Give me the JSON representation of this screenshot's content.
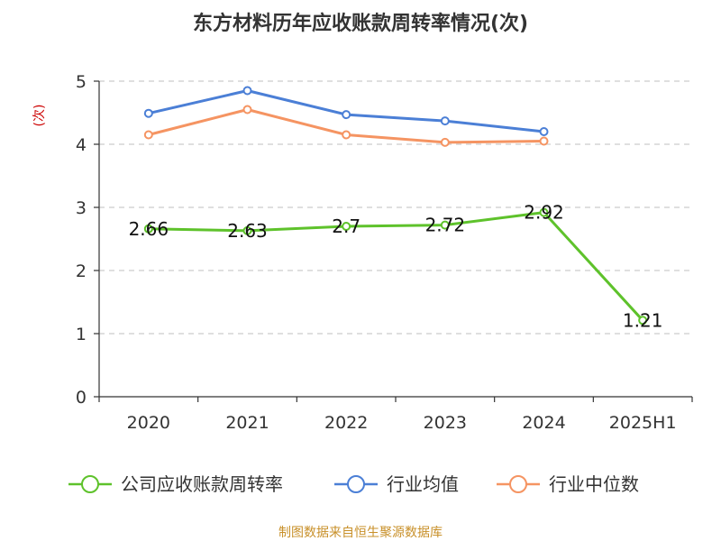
{
  "chart_data": {
    "type": "line",
    "title": "东方材料历年应收账款周转率情况(次)",
    "ylabel": "(次)",
    "xlabel": "",
    "categories": [
      "2020",
      "2021",
      "2022",
      "2023",
      "2024",
      "2025H1"
    ],
    "ylim": [
      0,
      5
    ],
    "yticks": [
      0,
      1,
      2,
      3,
      4,
      5
    ],
    "grid": true,
    "legend_position": "bottom",
    "series": [
      {
        "name": "公司应收账款周转率",
        "color": "#5ec22b",
        "values": [
          2.66,
          2.63,
          2.7,
          2.72,
          2.92,
          1.21
        ],
        "labels": [
          "2.66",
          "2.63",
          "2.7",
          "2.72",
          "2.92",
          "1.21"
        ]
      },
      {
        "name": "行业均值",
        "color": "#4b7fd6",
        "values": [
          4.49,
          4.85,
          4.47,
          4.37,
          4.2,
          null
        ]
      },
      {
        "name": "行业中位数",
        "color": "#f59462",
        "values": [
          4.15,
          4.55,
          4.15,
          4.03,
          4.05,
          null
        ]
      }
    ]
  },
  "source": "制图数据来自恒生聚源数据库"
}
